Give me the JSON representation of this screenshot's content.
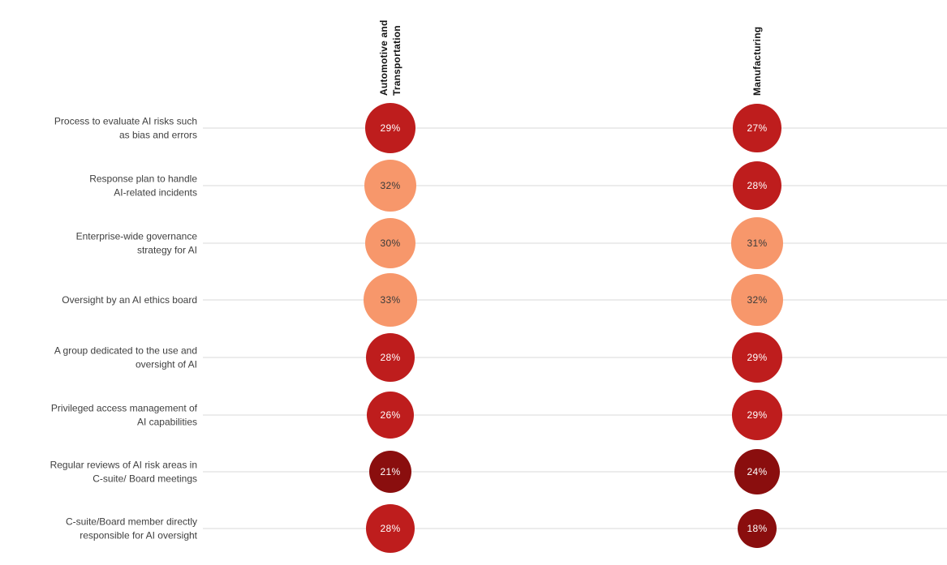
{
  "background_color": "#FFFFFF",
  "chart_data": {
    "type": "bubble",
    "title": "",
    "categories": [
      "Process to evaluate AI risks such\nas bias and errors",
      "Response plan to handle\nAI-related incidents",
      "Enterprise-wide governance\nstrategy for AI",
      "Oversight by an AI ethics board",
      "A group dedicated to the use and\noversight of AI",
      "Privileged access management of\nAI capabilities",
      "Regular reviews of AI risk areas in\nC-suite/ Board meetings",
      "C-suite/Board member directly\nresponsible for AI oversight"
    ],
    "series": [
      {
        "name": "Automotive and Transportation",
        "values": [
          29,
          32,
          30,
          33,
          28,
          26,
          21,
          28
        ]
      },
      {
        "name": "Manufacturing",
        "values": [
          27,
          28,
          31,
          32,
          29,
          29,
          24,
          18
        ]
      }
    ],
    "value_suffix": "%",
    "color_scale": [
      {
        "max": 24,
        "color": "#8A0E0E",
        "text_color": "#FFFFFF"
      },
      {
        "max": 29,
        "color": "#BE1D1D",
        "text_color": "#FFFFFF"
      },
      {
        "max": 100,
        "color": "#F7976B",
        "text_color": "#3A3A3A"
      }
    ],
    "size_rule": "bubble area proportional to value",
    "grid": "horizontal light gridlines",
    "legend_position": "none"
  }
}
